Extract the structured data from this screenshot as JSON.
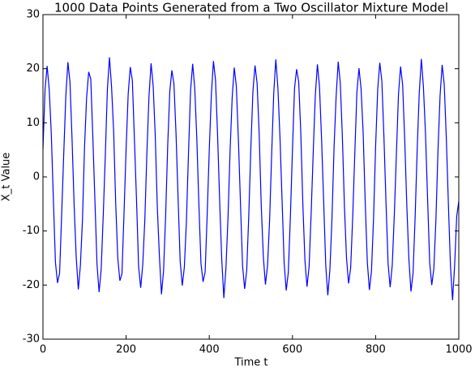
{
  "chart_data": {
    "type": "line",
    "title": "1000 Data Points Generated from a Two Oscillator Mixture Model",
    "x_label": "Time t",
    "y_label": "X_t Value",
    "xlim": [
      0,
      1000
    ],
    "xticks": [
      0,
      200,
      400,
      600,
      800,
      1000
    ],
    "ylim": [
      -30,
      30
    ],
    "yticks": [
      -30,
      -20,
      -10,
      0,
      10,
      20,
      30
    ],
    "grid": false,
    "x": [
      0,
      5,
      10,
      15,
      20,
      25,
      30,
      35,
      40,
      45,
      50,
      55,
      60,
      65,
      70,
      75,
      80,
      85,
      90,
      95,
      100,
      105,
      110,
      115,
      120,
      125,
      130,
      135,
      140,
      145,
      150,
      155,
      160,
      165,
      170,
      175,
      180,
      185,
      190,
      195,
      200,
      205,
      210,
      215,
      220,
      225,
      230,
      235,
      240,
      245,
      250,
      255,
      260,
      265,
      270,
      275,
      280,
      285,
      290,
      295,
      300,
      305,
      310,
      315,
      320,
      325,
      330,
      335,
      340,
      345,
      350,
      355,
      360,
      365,
      370,
      375,
      380,
      385,
      390,
      395,
      400,
      405,
      410,
      415,
      420,
      425,
      430,
      435,
      440,
      445,
      450,
      455,
      460,
      465,
      470,
      475,
      480,
      485,
      490,
      495,
      500,
      505,
      510,
      515,
      520,
      525,
      530,
      535,
      540,
      545,
      550,
      555,
      560,
      565,
      570,
      575,
      580,
      585,
      590,
      595,
      600,
      605,
      610,
      615,
      620,
      625,
      630,
      635,
      640,
      645,
      650,
      655,
      660,
      665,
      670,
      675,
      680,
      685,
      690,
      695,
      700,
      705,
      710,
      715,
      720,
      725,
      730,
      735,
      740,
      745,
      750,
      755,
      760,
      765,
      770,
      775,
      780,
      785,
      790,
      795,
      800,
      805,
      810,
      815,
      820,
      825,
      830,
      835,
      840,
      845,
      850,
      855,
      860,
      865,
      870,
      875,
      880,
      885,
      890,
      895,
      900,
      905,
      910,
      915,
      920,
      925,
      930,
      935,
      940,
      945,
      950,
      955,
      960,
      965,
      970,
      975,
      980,
      985,
      990,
      995,
      1000
    ],
    "series": [
      {
        "name": "X_t",
        "color": "#0000ff",
        "values": [
          5.2,
          16.1,
          20.5,
          16.2,
          8.1,
          -4.1,
          -15.8,
          -19.6,
          -17.8,
          -6.9,
          4.3,
          15.0,
          21.2,
          17.5,
          6.9,
          -5.3,
          -14.9,
          -20.8,
          -16.4,
          -8.0,
          5.6,
          14.7,
          19.4,
          18.1,
          7.2,
          -4.5,
          -16.2,
          -21.3,
          -17.1,
          -7.1,
          4.1,
          16.3,
          22.1,
          16.6,
          8.4,
          -5.0,
          -15.1,
          -19.2,
          -17.9,
          -6.6,
          5.3,
          15.4,
          20.3,
          17.8,
          6.8,
          -4.3,
          -16.6,
          -20.5,
          -16.2,
          -7.9,
          4.6,
          14.9,
          21.0,
          16.9,
          7.7,
          -5.6,
          -14.6,
          -21.7,
          -17.4,
          -7.3,
          5.8,
          15.8,
          19.7,
          17.2,
          8.0,
          -4.0,
          -15.6,
          -20.1,
          -16.7,
          -8.2,
          4.4,
          16.0,
          20.9,
          16.4,
          7.1,
          -5.2,
          -16.0,
          -19.4,
          -17.6,
          -6.8,
          5.1,
          15.2,
          21.4,
          17.9,
          7.6,
          -4.6,
          -15.3,
          -22.4,
          -16.9,
          -7.6,
          4.8,
          14.6,
          20.2,
          16.8,
          6.9,
          -4.9,
          -16.4,
          -20.7,
          -17.3,
          -7.0,
          5.5,
          15.9,
          20.6,
          17.3,
          7.9,
          -5.4,
          -14.8,
          -19.9,
          -16.5,
          -8.1,
          4.2,
          15.5,
          21.7,
          16.5,
          7.3,
          -4.2,
          -15.9,
          -21.0,
          -17.7,
          -7.4,
          5.0,
          16.4,
          19.9,
          17.6,
          8.3,
          -5.1,
          -15.4,
          -20.3,
          -16.6,
          -6.7,
          4.7,
          15.1,
          20.8,
          16.7,
          7.0,
          -4.4,
          -16.3,
          -21.9,
          -17.2,
          -7.8,
          5.4,
          14.8,
          21.3,
          17.4,
          7.5,
          -5.5,
          -15.0,
          -19.7,
          -16.8,
          -7.2,
          4.5,
          15.7,
          20.1,
          16.3,
          8.2,
          -4.7,
          -15.7,
          -20.9,
          -17.5,
          -7.7,
          5.7,
          16.2,
          21.1,
          17.7,
          7.4,
          -4.8,
          -16.1,
          -20.4,
          -16.3,
          -6.9,
          4.3,
          15.3,
          20.4,
          17.0,
          6.8,
          -5.3,
          -15.2,
          -21.2,
          -17.8,
          -7.5,
          5.2,
          15.6,
          21.8,
          16.6,
          7.8,
          -4.1,
          -15.8,
          -20.0,
          -17.0,
          -8.0,
          4.9,
          15.0,
          20.7,
          17.1,
          7.2,
          -5.0,
          -16.5,
          -22.8,
          -16.4,
          -7.3,
          -4.5
        ]
      }
    ]
  }
}
